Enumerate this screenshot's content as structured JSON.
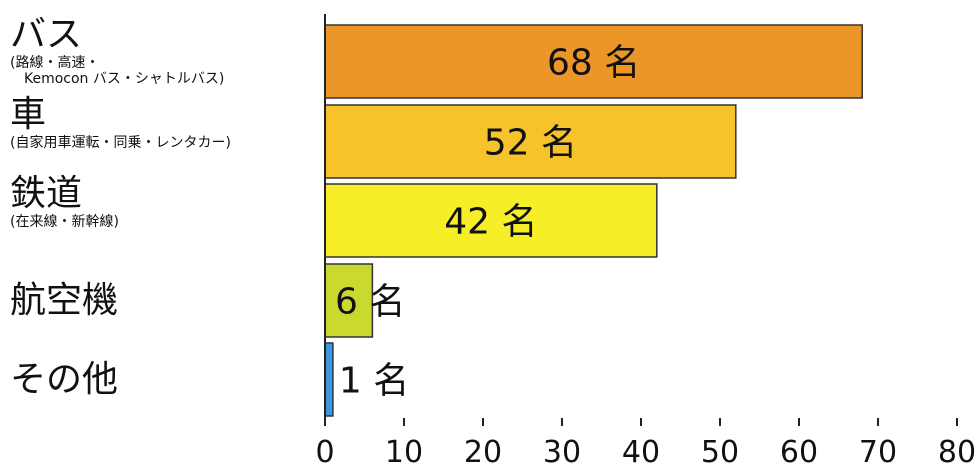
{
  "chart_data": {
    "type": "bar",
    "orientation": "horizontal",
    "categories": [
      {
        "label": "バス",
        "sublabel": "(路線・高速・\n　Kemocon バス・シャトルバス)"
      },
      {
        "label": "車",
        "sublabel": "(自家用車運転・同乗・レンタカー)"
      },
      {
        "label": "鉄道",
        "sublabel": "(在来線・新幹線)"
      },
      {
        "label": "航空機",
        "sublabel": ""
      },
      {
        "label": "その他",
        "sublabel": ""
      }
    ],
    "values": [
      68,
      52,
      42,
      6,
      1
    ],
    "value_labels": [
      "68 名",
      "52 名",
      "42 名",
      "6 名",
      "1 名"
    ],
    "colors": [
      "#ec9628",
      "#f6c42a",
      "#f6ef28",
      "#c9d92e",
      "#3a97e0"
    ],
    "xlim": [
      0,
      80
    ],
    "xticks": [
      0,
      10,
      20,
      30,
      40,
      50,
      60,
      70,
      80
    ],
    "grid": false,
    "legend": "none"
  }
}
